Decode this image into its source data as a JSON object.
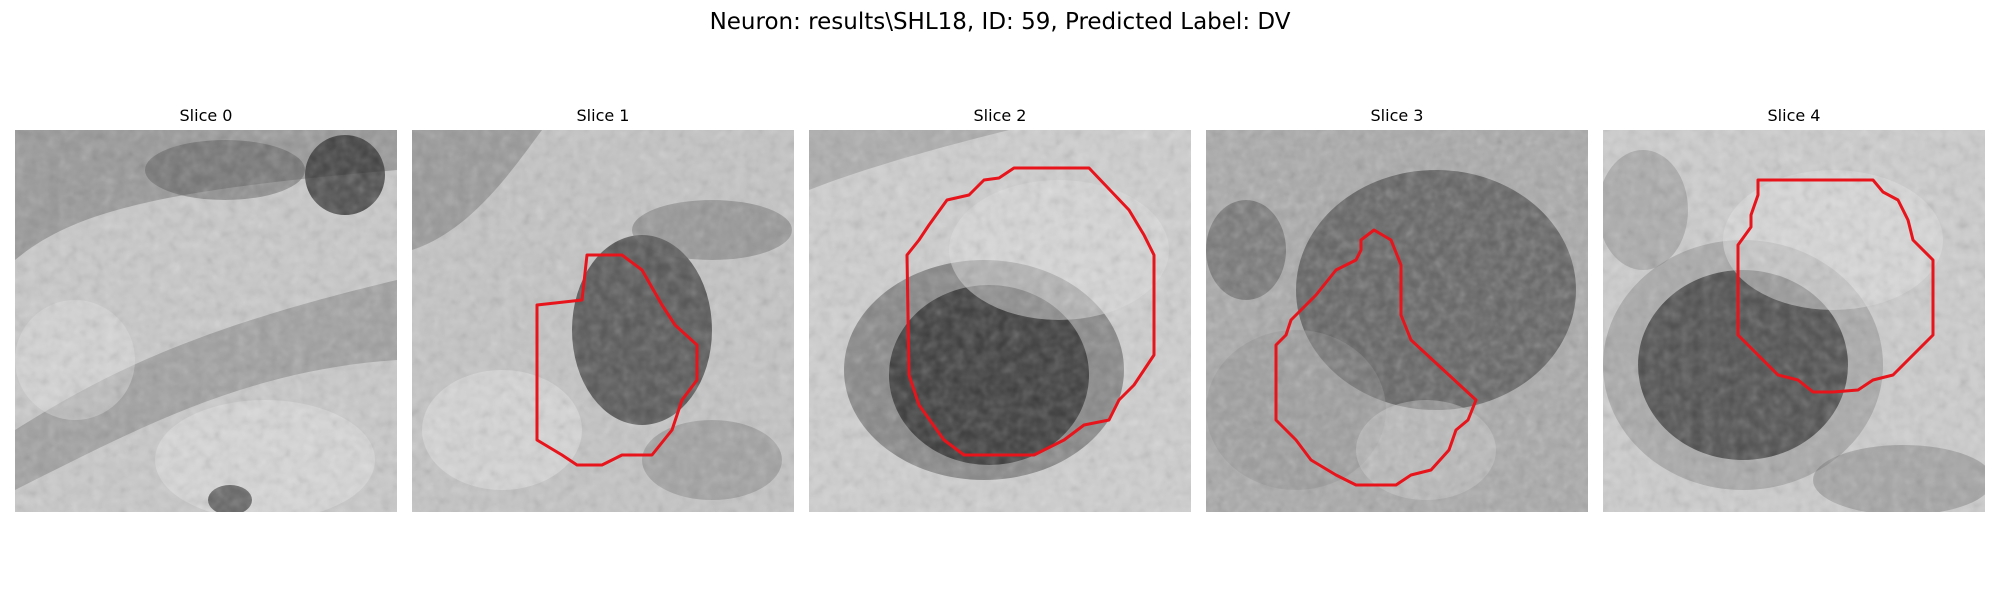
{
  "figure": {
    "title": "Neuron: results\\SHL18, ID: 59, Predicted Label: DV",
    "contour_color": "#e8141c"
  },
  "slices": [
    {
      "title": "Slice 0"
    },
    {
      "title": "Slice 1"
    },
    {
      "title": "Slice 2"
    },
    {
      "title": "Slice 3"
    },
    {
      "title": "Slice 4"
    }
  ]
}
